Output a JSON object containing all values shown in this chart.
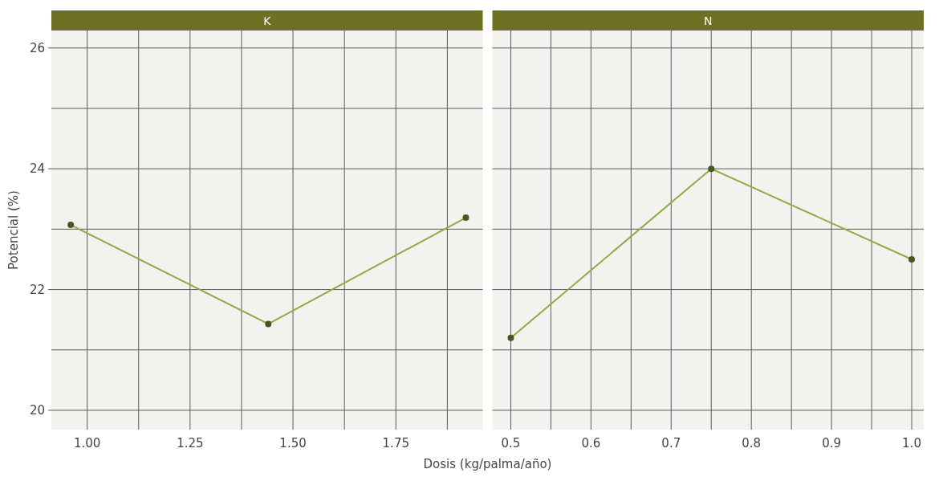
{
  "chart_data": [
    {
      "type": "line",
      "title": "K",
      "ylabel": "Potencial (%)",
      "x": [
        0.96,
        1.44,
        1.92
      ],
      "series": [
        {
          "color": "#8aad42",
          "values": [
            23.07,
            21.43,
            23.19
          ]
        }
      ],
      "xlim": [
        0.913,
        1.961
      ],
      "xticks": [
        {
          "value": 1.0,
          "label": "1.00"
        },
        {
          "value": 1.125,
          "label": null
        },
        1.25,
        {
          "value": 1.375,
          "label": null
        },
        {
          "value": 1.5,
          "label": "1.50"
        },
        {
          "value": 1.625,
          "label": null
        },
        1.75,
        {
          "value": 1.875,
          "label": null
        }
      ],
      "ylim": [
        19.68,
        26.29
      ],
      "yticks": [
        20,
        {
          "value": 21,
          "label": null
        },
        22,
        {
          "value": 23,
          "label": null
        },
        24,
        {
          "value": 25,
          "label": null
        },
        26
      ],
      "grid": true,
      "marker": "circle"
    },
    {
      "type": "line",
      "title": "N",
      "xlabel": "Dosis (kg/palma/año)",
      "x": [
        0.5,
        0.75,
        1.0
      ],
      "series": [
        {
          "color": "#8aad42",
          "values": [
            21.2,
            24.0,
            22.5
          ]
        }
      ],
      "xlim": [
        0.477,
        1.015
      ],
      "xticks": [
        0.5,
        {
          "value": 0.55,
          "label": null
        },
        0.6,
        {
          "value": 0.65,
          "label": null
        },
        0.7,
        {
          "value": 0.75,
          "label": null
        },
        0.8,
        {
          "value": 0.85,
          "label": null
        },
        0.9,
        {
          "value": 0.95,
          "label": null
        },
        {
          "value": 1.0,
          "label": "1.0"
        }
      ],
      "ylim": [
        19.68,
        26.29
      ],
      "yticks": [
        20,
        {
          "value": 21,
          "label": null
        },
        22,
        {
          "value": 23,
          "label": null
        },
        24,
        {
          "value": 25,
          "label": null
        },
        26
      ],
      "grid": true,
      "marker": "circle",
      "tick_labels": "x"
    }
  ]
}
